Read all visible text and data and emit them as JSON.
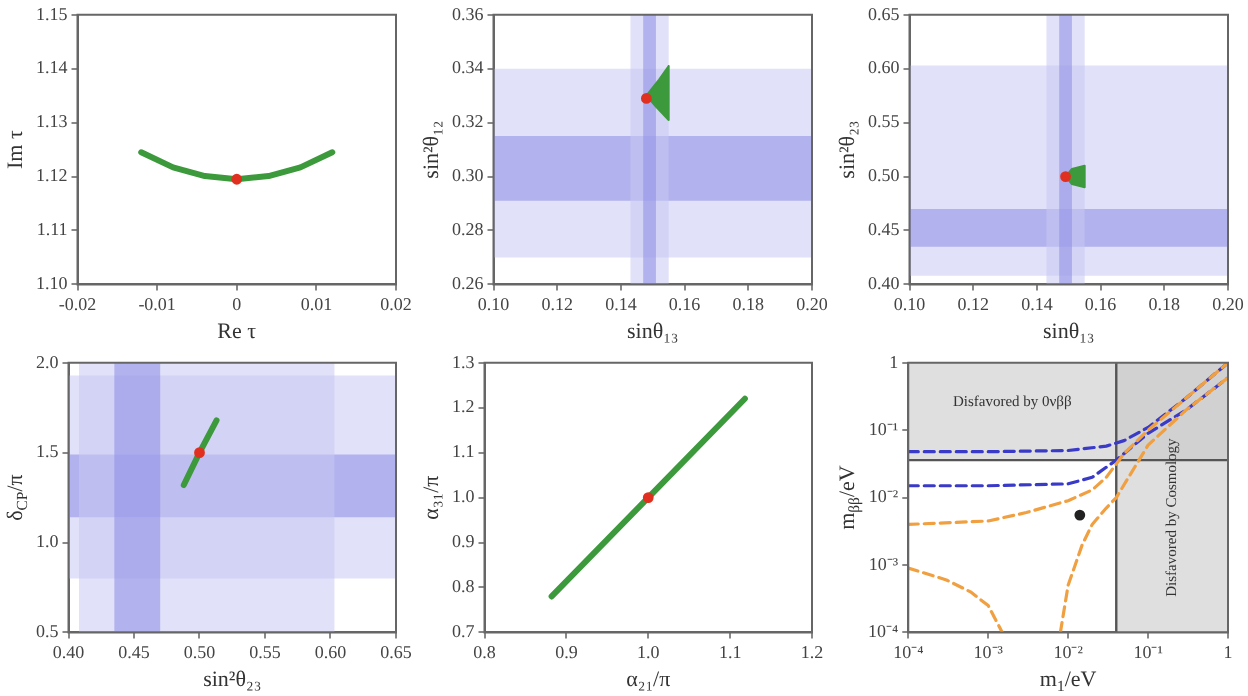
{
  "chart_data": [
    {
      "type": "line",
      "xlabel": "Re τ",
      "ylabel": "Im τ",
      "xlim": [
        -0.02,
        0.02
      ],
      "ylim": [
        1.1,
        1.15
      ],
      "xticks": [
        -0.02,
        -0.01,
        0,
        0.01,
        0.02
      ],
      "yticks": [
        {
          "value": 1.1,
          "label": "1.10"
        },
        1.11,
        1.12,
        1.13,
        1.14,
        1.15
      ],
      "grid": false,
      "series": [
        {
          "type": "line",
          "color": "#3c9a3c",
          "x": [
            -0.012,
            -0.008,
            -0.004,
            0,
            0.004,
            0.008,
            0.012
          ],
          "values": [
            1.1245,
            1.1217,
            1.1201,
            1.1195,
            1.1201,
            1.1217,
            1.1245
          ]
        },
        {
          "type": "scatter",
          "color": "#e03020",
          "x": [
            0
          ],
          "values": [
            1.1195
          ]
        }
      ]
    },
    {
      "type": "line",
      "xlabel": "sinθ₁₃",
      "ylabel": "sin²θ₁₂",
      "xlim": [
        0.1,
        0.2
      ],
      "ylim": [
        0.26,
        0.36
      ],
      "xticks": [
        {
          "value": 0.1,
          "label": "0.10"
        },
        0.12,
        0.14,
        0.16,
        0.18,
        {
          "value": 0.2,
          "label": "0.20"
        }
      ],
      "yticks": [
        0.26,
        0.28,
        {
          "value": 0.3,
          "label": "0.30"
        },
        0.32,
        0.34,
        0.36
      ],
      "grid": false,
      "bands": [
        {
          "axis": "y",
          "from": 0.27,
          "to": 0.34,
          "color": "#c8c8f4"
        },
        {
          "axis": "y",
          "from": 0.291,
          "to": 0.315,
          "color": "#8c8ce6"
        },
        {
          "axis": "x",
          "from": 0.143,
          "to": 0.155,
          "color": "#c8c8f4"
        },
        {
          "axis": "x",
          "from": 0.147,
          "to": 0.151,
          "color": "#8c8ce6"
        }
      ],
      "series": [
        {
          "type": "area",
          "color": "#3c9a3c",
          "x": [
            0.148,
            0.152,
            0.155,
            0.155,
            0.151,
            0.148
          ],
          "values": [
            0.33,
            0.336,
            0.341,
            0.321,
            0.326,
            0.33
          ]
        },
        {
          "type": "scatter",
          "color": "#e03020",
          "x": [
            0.148
          ],
          "values": [
            0.329
          ]
        }
      ]
    },
    {
      "type": "line",
      "xlabel": "sinθ₁₃",
      "ylabel": "sin²θ₂₃",
      "xlim": [
        0.1,
        0.2
      ],
      "ylim": [
        0.4,
        0.65
      ],
      "xticks": [
        {
          "value": 0.1,
          "label": "0.10"
        },
        0.12,
        0.14,
        0.16,
        0.18,
        {
          "value": 0.2,
          "label": "0.20"
        }
      ],
      "yticks": [
        {
          "value": 0.4,
          "label": "0.40"
        },
        0.45,
        {
          "value": 0.5,
          "label": "0.50"
        },
        0.55,
        {
          "value": 0.6,
          "label": "0.60"
        },
        0.65
      ],
      "grid": false,
      "bands": [
        {
          "axis": "y",
          "from": 0.408,
          "to": 0.603,
          "color": "#c8c8f4"
        },
        {
          "axis": "y",
          "from": 0.435,
          "to": 0.47,
          "color": "#8c8ce6"
        },
        {
          "axis": "x",
          "from": 0.143,
          "to": 0.155,
          "color": "#c8c8f4"
        },
        {
          "axis": "x",
          "from": 0.147,
          "to": 0.151,
          "color": "#8c8ce6"
        }
      ],
      "series": [
        {
          "type": "area",
          "color": "#3c9a3c",
          "x": [
            0.149,
            0.151,
            0.155,
            0.155,
            0.151,
            0.149
          ],
          "values": [
            0.5,
            0.507,
            0.51,
            0.49,
            0.493,
            0.5
          ]
        },
        {
          "type": "scatter",
          "color": "#e03020",
          "x": [
            0.149
          ],
          "values": [
            0.5
          ]
        }
      ]
    },
    {
      "type": "line",
      "xlabel": "sin²θ₂₃",
      "ylabel": "δ$_{CP}$/π",
      "xlim": [
        0.4,
        0.65
      ],
      "ylim": [
        0.5,
        2.0
      ],
      "xticks": [
        {
          "value": 0.4,
          "label": "0.40"
        },
        0.45,
        {
          "value": 0.5,
          "label": "0.50"
        },
        0.55,
        {
          "value": 0.6,
          "label": "0.60"
        },
        0.65
      ],
      "yticks": [
        0.5,
        {
          "value": 1,
          "label": "1.0"
        },
        1.5,
        {
          "value": 2,
          "label": "2.0"
        }
      ],
      "grid": false,
      "bands": [
        {
          "axis": "y",
          "from": 0.8,
          "to": 1.93,
          "color": "#c8c8f4"
        },
        {
          "axis": "y",
          "from": 1.14,
          "to": 1.49,
          "color": "#8c8ce6"
        },
        {
          "axis": "x",
          "from": 0.408,
          "to": 0.603,
          "color": "#c8c8f4"
        },
        {
          "axis": "x",
          "from": 0.435,
          "to": 0.47,
          "color": "#8c8ce6"
        }
      ],
      "series": [
        {
          "type": "line",
          "color": "#3c9a3c",
          "x": [
            0.488,
            0.5,
            0.513
          ],
          "values": [
            1.32,
            1.5,
            1.68
          ]
        },
        {
          "type": "scatter",
          "color": "#e03020",
          "x": [
            0.5
          ],
          "values": [
            1.5
          ]
        }
      ]
    },
    {
      "type": "line",
      "xlabel": "α₂₁/π",
      "ylabel": "α₃₁/π",
      "xlim": [
        0.8,
        1.2
      ],
      "ylim": [
        0.7,
        1.3
      ],
      "xticks": [
        0.8,
        0.9,
        {
          "value": 1,
          "label": "1.0"
        },
        1.1,
        1.2
      ],
      "yticks": [
        0.7,
        0.8,
        0.9,
        {
          "value": 1,
          "label": "1.0"
        },
        1.1,
        1.2,
        1.3
      ],
      "grid": false,
      "series": [
        {
          "type": "line",
          "color": "#3c9a3c",
          "x": [
            0.882,
            1.0,
            1.118
          ],
          "values": [
            0.78,
            1.0,
            1.22
          ]
        },
        {
          "type": "scatter",
          "color": "#e03020",
          "x": [
            1.0
          ],
          "values": [
            1.0
          ]
        }
      ]
    },
    {
      "type": "line",
      "log": "xy",
      "xlabel": "m$_{1}$/eV",
      "ylabel": "m$_{ββ}$/eV",
      "xlim": [
        0.0001,
        1
      ],
      "ylim": [
        0.0001,
        1
      ],
      "xticks": [
        {
          "value": 0.0001,
          "label": "10⁻⁴"
        },
        {
          "value": 0.001,
          "label": "10⁻³"
        },
        {
          "value": 0.01,
          "label": "10⁻²"
        },
        {
          "value": 0.1,
          "label": "10⁻¹"
        },
        1
      ],
      "yticks": [
        {
          "value": 0.0001,
          "label": "10⁻⁴"
        },
        {
          "value": 0.001,
          "label": "10⁻³"
        },
        {
          "value": 0.01,
          "label": "10⁻²"
        },
        {
          "value": 0.1,
          "label": "10⁻¹"
        },
        1
      ],
      "grid": false,
      "bands": [
        {
          "axis": "y",
          "from": 0.036,
          "to": 1,
          "color": "#c4c4c4",
          "label": "Disfavored by 0νββ"
        },
        {
          "axis": "x",
          "from": 0.04,
          "to": 1,
          "color": "#c4c4c4",
          "label": "Disfavored by Cosmology"
        }
      ],
      "ref_lines": [
        {
          "axis": "y",
          "value": 0.036,
          "color": "#555555"
        },
        {
          "axis": "x",
          "value": 0.04,
          "color": "#555555"
        }
      ],
      "series": [
        {
          "type": "line",
          "line_style": "dashed",
          "color": "#3a3ac8",
          "x": [
            0.0001,
            0.001,
            0.01,
            0.03,
            0.05,
            0.1,
            0.3,
            1
          ],
          "values": [
            0.048,
            0.048,
            0.05,
            0.058,
            0.07,
            0.11,
            0.3,
            1
          ]
        },
        {
          "type": "line",
          "line_style": "dashed",
          "color": "#3a3ac8",
          "x": [
            0.0001,
            0.001,
            0.01,
            0.02,
            0.04,
            0.1,
            0.3,
            1
          ],
          "values": [
            0.015,
            0.015,
            0.016,
            0.02,
            0.036,
            0.09,
            0.2,
            0.6
          ]
        },
        {
          "type": "line",
          "line_style": "dashed",
          "color": "#f0a040",
          "x": [
            0.0001,
            0.001,
            0.003,
            0.01,
            0.02,
            0.03,
            0.05,
            0.1,
            0.3,
            1
          ],
          "values": [
            0.004,
            0.0045,
            0.006,
            0.009,
            0.013,
            0.02,
            0.045,
            0.1,
            0.3,
            1
          ]
        },
        {
          "type": "line",
          "line_style": "dashed",
          "color": "#f0a040",
          "x": [
            0.0001,
            0.0003,
            0.0006,
            0.001,
            0.0015
          ],
          "values": [
            0.0009,
            0.0006,
            0.0004,
            0.00025,
            0.0001
          ]
        },
        {
          "type": "line",
          "line_style": "dashed",
          "color": "#f0a040",
          "x": [
            0.008,
            0.01,
            0.015,
            0.02,
            0.03,
            0.04,
            0.1,
            0.3,
            1
          ],
          "values": [
            0.0001,
            0.0005,
            0.002,
            0.004,
            0.007,
            0.01,
            0.06,
            0.2,
            0.6
          ]
        },
        {
          "type": "scatter",
          "color": "#222222",
          "x": [
            0.014
          ],
          "values": [
            0.0055
          ]
        }
      ]
    }
  ]
}
